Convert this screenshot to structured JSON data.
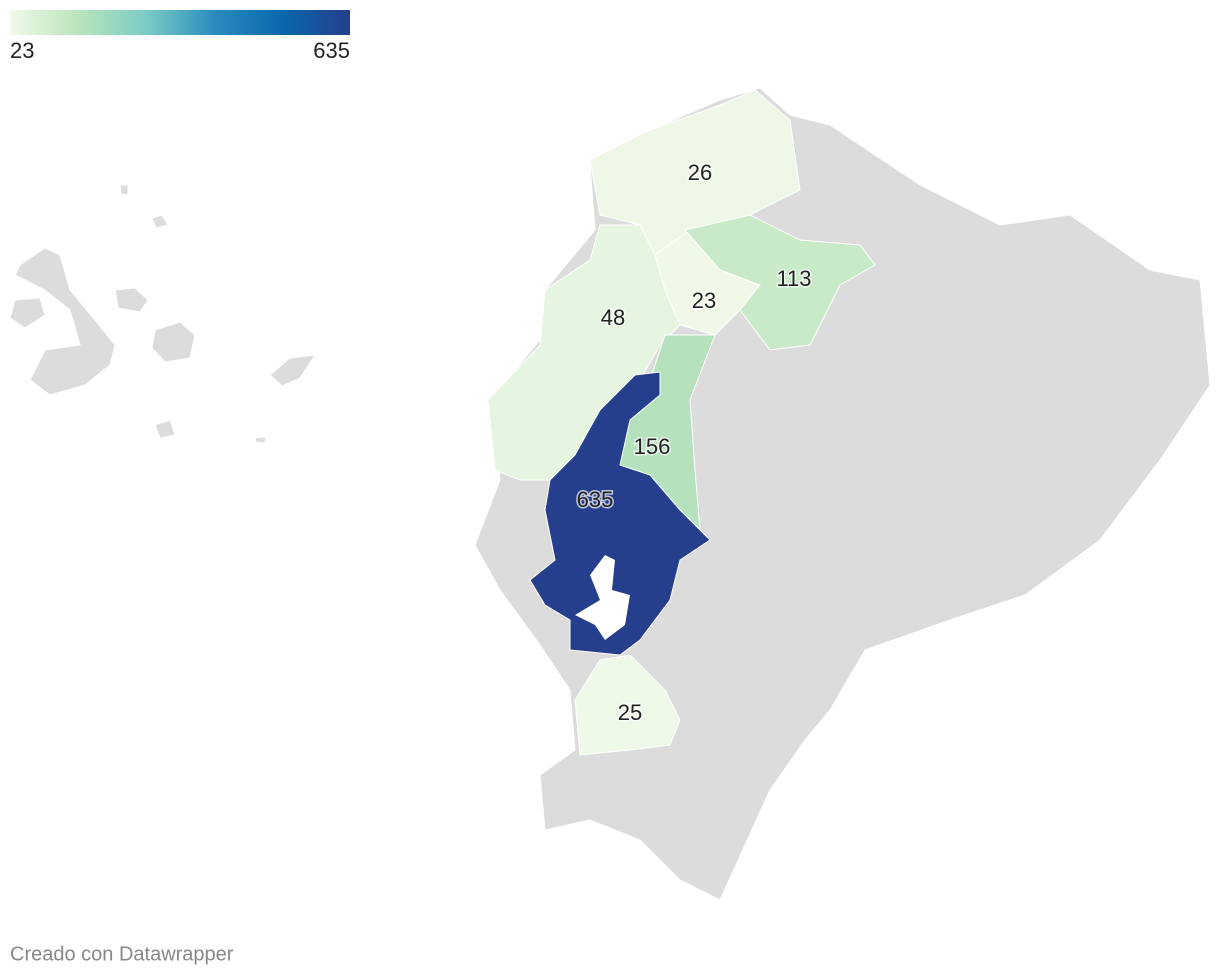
{
  "legend": {
    "min": 23,
    "max": 635,
    "colors": [
      "#f0f9e8",
      "#bae4bc",
      "#7bccc4",
      "#2b8cbe",
      "#0868ac",
      "#253f8c"
    ]
  },
  "regions": [
    {
      "value": 26
    },
    {
      "value": 48
    },
    {
      "value": 23
    },
    {
      "value": 113
    },
    {
      "value": 156
    },
    {
      "value": 635
    },
    {
      "value": 25
    }
  ],
  "footer": "Creado con Datawrapper"
}
